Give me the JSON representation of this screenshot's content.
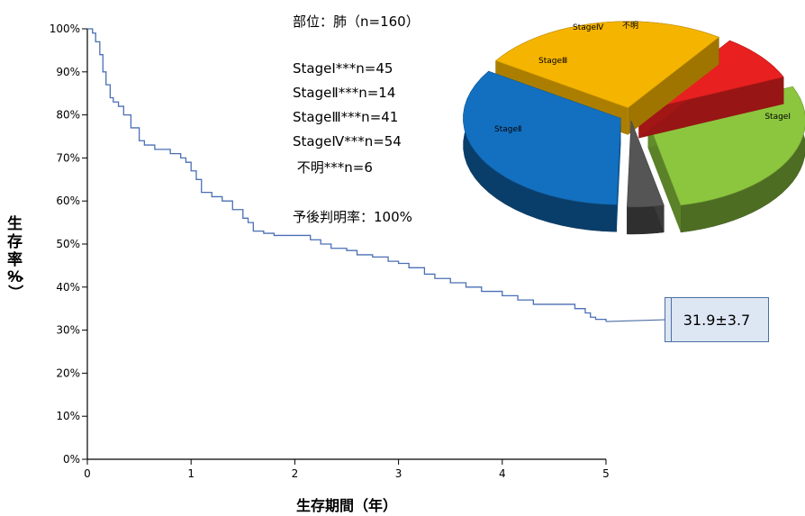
{
  "chart_data": [
    {
      "type": "line",
      "title": "",
      "xlabel": "生存期間（年）",
      "ylabel": "生存率（%）",
      "ylim": [
        0,
        100
      ],
      "xlim": [
        0,
        5
      ],
      "x_ticks": [
        "0",
        "1",
        "2",
        "3",
        "4",
        "5"
      ],
      "y_ticks": [
        "0%",
        "10%",
        "20%",
        "30%",
        "40%",
        "50%",
        "60%",
        "70%",
        "80%",
        "90%",
        "100%"
      ],
      "grid": false,
      "series": [
        {
          "x": [
            0,
            0.05,
            0.08,
            0.12,
            0.15,
            0.18,
            0.22,
            0.25,
            0.3,
            0.35,
            0.42,
            0.5,
            0.55,
            0.6,
            0.65,
            0.7,
            0.8,
            0.9,
            0.95,
            1.0,
            1.05,
            1.1,
            1.2,
            1.3,
            1.4,
            1.5,
            1.55,
            1.6,
            1.7,
            1.8,
            2.0,
            2.15,
            2.25,
            2.35,
            2.5,
            2.6,
            2.75,
            2.9,
            3.0,
            3.1,
            3.25,
            3.35,
            3.5,
            3.65,
            3.8,
            4.0,
            4.15,
            4.3,
            4.6,
            4.7,
            4.8,
            4.85,
            4.9,
            5.0
          ],
          "y": [
            100,
            99,
            97,
            94,
            90,
            87,
            84,
            83,
            82,
            80,
            77,
            74,
            73,
            73,
            72,
            72,
            71,
            70,
            69,
            67,
            65,
            62,
            61,
            60,
            58,
            56,
            55,
            53,
            52.5,
            52,
            52,
            51,
            50,
            49,
            48.5,
            47.5,
            47,
            46,
            45.5,
            44.5,
            43,
            42,
            41,
            40,
            39,
            38,
            37,
            36,
            36,
            35,
            34,
            33,
            32.5,
            32
          ]
        }
      ],
      "annotation": "31.9±3.7"
    },
    {
      "type": "pie",
      "categories": [
        "StageⅠ",
        "StageⅡ",
        "StageⅢ",
        "StageⅣ",
        "不明"
      ],
      "values": [
        45,
        14,
        41,
        54,
        6
      ],
      "colors": [
        "#8cc63f",
        "#e8201f",
        "#f5b400",
        "#1370c0",
        "#555555"
      ],
      "note": "exploded 3D pie; label texts as printed"
    }
  ],
  "info": {
    "site": "部位：肺（n=160）",
    "stage1": "StageⅠ***n=45",
    "stage2": "StageⅡ***n=14",
    "stage3": "StageⅢ***n=41",
    "stage4": "StageⅣ***n=54",
    "unknown": " 不明***n=6",
    "prognosis": "予後判明率：100%"
  },
  "pie_labels": {
    "stage1": "StageⅠ",
    "stage2": "StageⅡ",
    "stage3": "StageⅢ",
    "stage4": "StageⅣ",
    "unknown": "不明"
  },
  "callout": "31.9±3.7",
  "ylabel_chars": [
    "生",
    "存",
    "率",
    "（",
    "%",
    "）"
  ],
  "colors": {
    "line": "#4a6fb5",
    "axis": "#000000"
  }
}
